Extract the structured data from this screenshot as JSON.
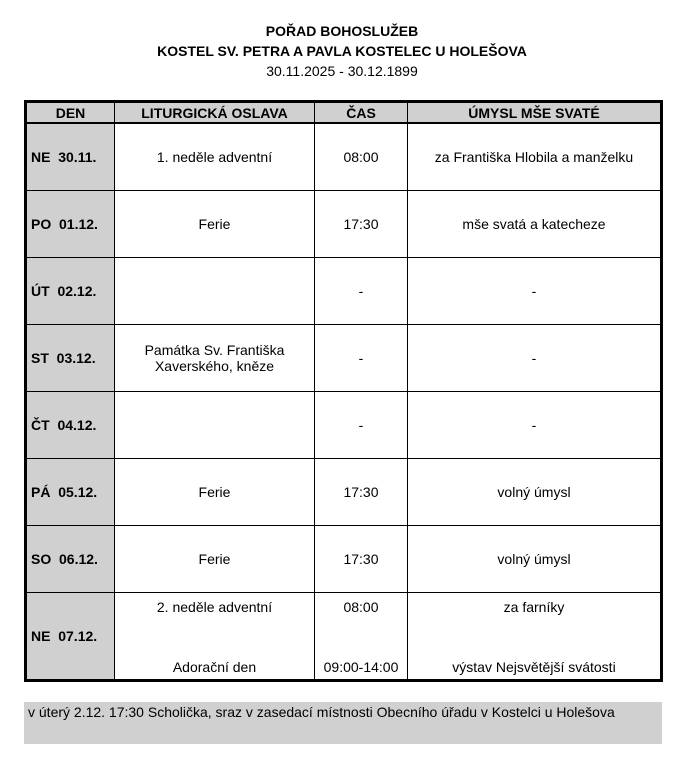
{
  "header": {
    "title": "POŘAD BOHOSLUŽEB",
    "church": "KOSTEL SV. PETRA A PAVLA KOSTELEC U HOLEŠOVA",
    "date_range": "30.11.2025 - 30.12.1899"
  },
  "columns": [
    "DEN",
    "LITURGICKÁ OSLAVA",
    "ČAS",
    "ÚMYSL MŠE SVATÉ"
  ],
  "rows": [
    {
      "day": "NE  30.11.",
      "feast": "1. neděle adventní",
      "time": "08:00",
      "intention": "za Františka Hlobila a manželku"
    },
    {
      "day": "PO  01.12.",
      "feast": "Ferie",
      "time": "17:30",
      "intention": "mše svatá a katecheze"
    },
    {
      "day": "ÚT  02.12.",
      "feast": "",
      "time": "-",
      "intention": "-"
    },
    {
      "day": "ST  03.12.",
      "feast": "Památka Sv. Františka Xaverského, kněze",
      "time": "-",
      "intention": "-"
    },
    {
      "day": "ČT  04.12.",
      "feast": "",
      "time": "-",
      "intention": "-"
    },
    {
      "day": "PÁ  05.12.",
      "feast": "Ferie",
      "time": "17:30",
      "intention": "volný úmysl"
    },
    {
      "day": "SO  06.12.",
      "feast": "Ferie",
      "time": "17:30",
      "intention": "volný úmysl"
    }
  ],
  "last_row": {
    "day": "NE  07.12.",
    "feast": "2. neděle adventní",
    "time": "08:00",
    "intention": "za farníky",
    "feast2": "Adorační den",
    "time2": "09:00-14:00",
    "intention2": "výstav Nejsvětější svátosti"
  },
  "note": "v úterý 2.12. 17:30 Scholička, sraz v zasedací místnosti Obecního úřadu v Kostelci u Holešova"
}
